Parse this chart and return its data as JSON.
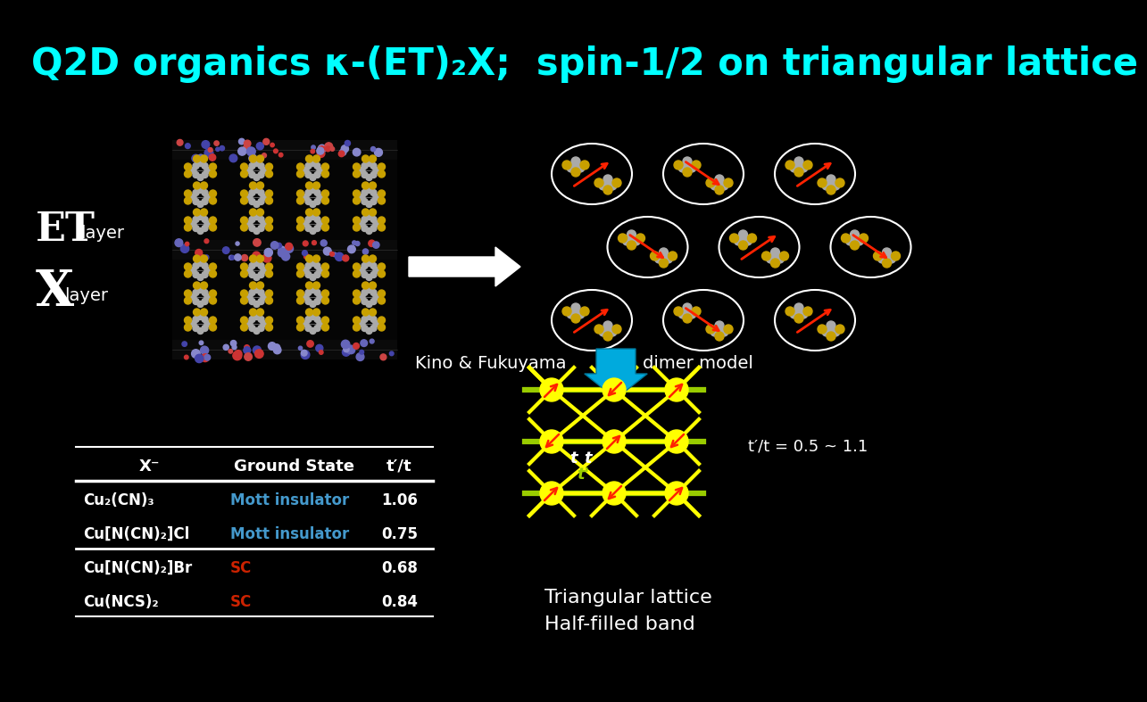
{
  "bg_color": "#000000",
  "title": "Q2D organics κ-(ET)₂X;  spin-1/2 on triangular lattice",
  "title_color": "#00FFFF",
  "title_fontsize": 30,
  "mott_color": "#4499CC",
  "sc_color": "#CC2200",
  "table_headers": [
    "X⁻",
    "Ground State",
    "t′/t"
  ],
  "table_rows": [
    [
      "Cu₂(CN)₃",
      "Mott insulator",
      "1.06"
    ],
    [
      "Cu[N(CN)₂]Cl",
      "Mott insulator",
      "0.75"
    ],
    [
      "Cu[N(CN)₂]Br",
      "SC",
      "0.68"
    ],
    [
      "Cu(NCS)₂",
      "SC",
      "0.84"
    ]
  ],
  "kino_text": "Kino & Fukuyama",
  "dimer_text": "dimer model",
  "tri_lat_text": "Triangular lattice\nHalf-filled band",
  "tprime_t_text": "t′/t = 0.5 ~ 1.1",
  "lattice_node_color": "#FFFF00",
  "lattice_line_color": "#FFFF00",
  "green_line_color": "#99CC00",
  "red_arrow_color": "#FF2200",
  "cyan_arrow_color": "#00AADD"
}
